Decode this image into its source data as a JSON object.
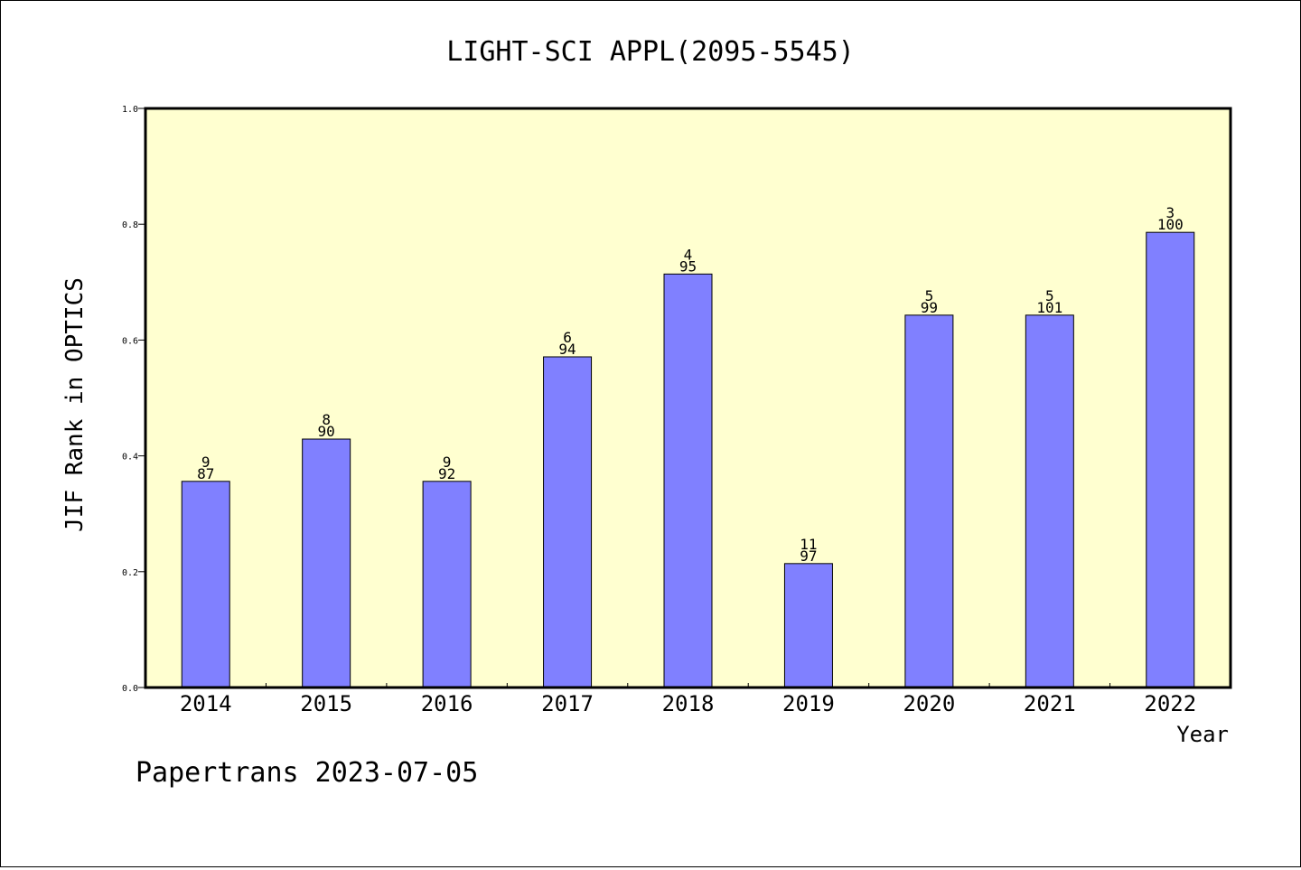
{
  "chart_data": {
    "type": "bar",
    "title": "LIGHT-SCI APPL(2095-5545)",
    "xlabel": "Year",
    "ylabel": "JIF Rank in OPTICS",
    "footer": "Papertrans 2023-07-05",
    "ylim": [
      0.0,
      1.0
    ],
    "yticks": [
      "0.0",
      "0.2",
      "0.4",
      "0.6",
      "0.8",
      "1.0"
    ],
    "grid": false,
    "categories": [
      "2014",
      "2015",
      "2016",
      "2017",
      "2018",
      "2019",
      "2020",
      "2021",
      "2022"
    ],
    "values": [
      0.356,
      0.429,
      0.356,
      0.571,
      0.714,
      0.214,
      0.643,
      0.643,
      0.786
    ],
    "rank_labels": [
      "9",
      "8",
      "9",
      "6",
      "4",
      "11",
      "5",
      "5",
      "3"
    ],
    "total_labels": [
      "87",
      "90",
      "92",
      "94",
      "95",
      "97",
      "99",
      "101",
      "100"
    ],
    "colors": {
      "bar": "#8080ff",
      "plot_background": "#ffffd0",
      "axis": "#000000"
    }
  }
}
